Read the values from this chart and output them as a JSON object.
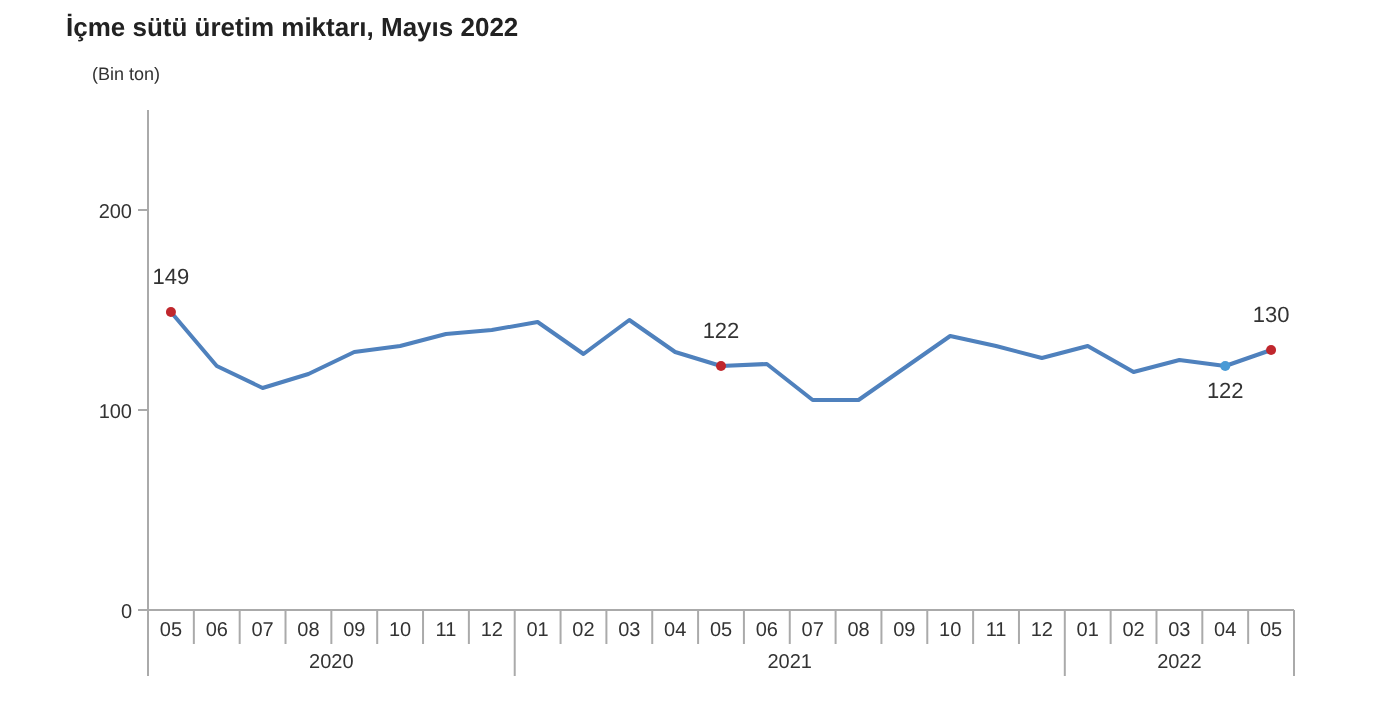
{
  "chart_data": {
    "type": "line",
    "title": "İçme sütü üretim miktarı, Mayıs 2022",
    "ylabel": "(Bin ton)",
    "categories": [
      "05",
      "06",
      "07",
      "08",
      "09",
      "10",
      "11",
      "12",
      "01",
      "02",
      "03",
      "04",
      "05",
      "06",
      "07",
      "08",
      "09",
      "10",
      "11",
      "12",
      "01",
      "02",
      "03",
      "04",
      "05"
    ],
    "series": [
      {
        "color": "#4f81bd",
        "values": [
          149,
          122,
          111,
          118,
          129,
          132,
          138,
          140,
          144,
          128,
          145,
          129,
          122,
          123,
          105,
          105,
          121,
          137,
          132,
          126,
          132,
          119,
          125,
          122,
          130
        ],
        "value_labels": [
          "149",
          null,
          null,
          null,
          null,
          null,
          null,
          null,
          null,
          null,
          null,
          null,
          "122",
          null,
          null,
          null,
          null,
          null,
          null,
          null,
          null,
          null,
          null,
          "122",
          "130"
        ],
        "colors": [
          "#c0272d",
          null,
          null,
          null,
          null,
          null,
          null,
          null,
          null,
          null,
          null,
          null,
          "#c0272d",
          null,
          null,
          null,
          null,
          null,
          null,
          null,
          null,
          null,
          null,
          "#4a9bd6",
          "#c0272d"
        ]
      }
    ],
    "annotations": [
      "2020",
      "2021",
      "2022"
    ],
    "ylim": [
      0,
      250
    ],
    "yticks": [
      0,
      100,
      200
    ],
    "grid": false,
    "line_style": "solid"
  }
}
